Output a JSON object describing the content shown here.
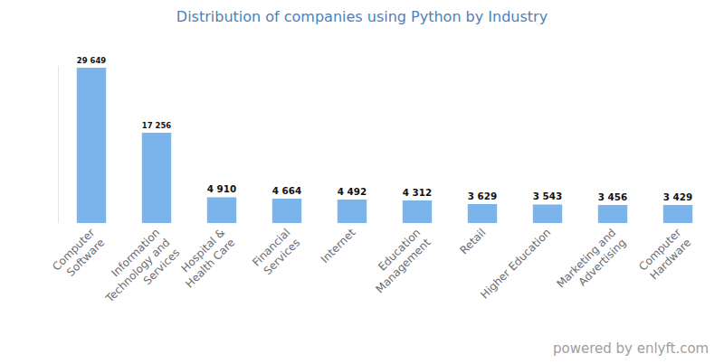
{
  "chart_data": {
    "type": "bar",
    "title": "Distribution of companies using Python by Industry",
    "categories": [
      "Computer Software",
      "Information Technology and Services",
      "Hospital & Health Care",
      "Financial Services",
      "Internet",
      "Education Management",
      "Retail",
      "Higher Education",
      "Marketing and Advertising",
      "Computer Hardware"
    ],
    "values": [
      29649,
      17256,
      4910,
      4664,
      4492,
      4312,
      3629,
      3543,
      3456,
      3429
    ],
    "value_labels": [
      "29 649",
      "17 256",
      "4 910",
      "4 664",
      "4 492",
      "4 312",
      "3 629",
      "3 543",
      "3 456",
      "3 429"
    ],
    "color": "#7ab4ea",
    "ylim": [
      0,
      30000
    ],
    "grid": false,
    "data_labels": true,
    "tick_labels": "x",
    "annotations": [
      "powered by enlyft.com"
    ]
  }
}
